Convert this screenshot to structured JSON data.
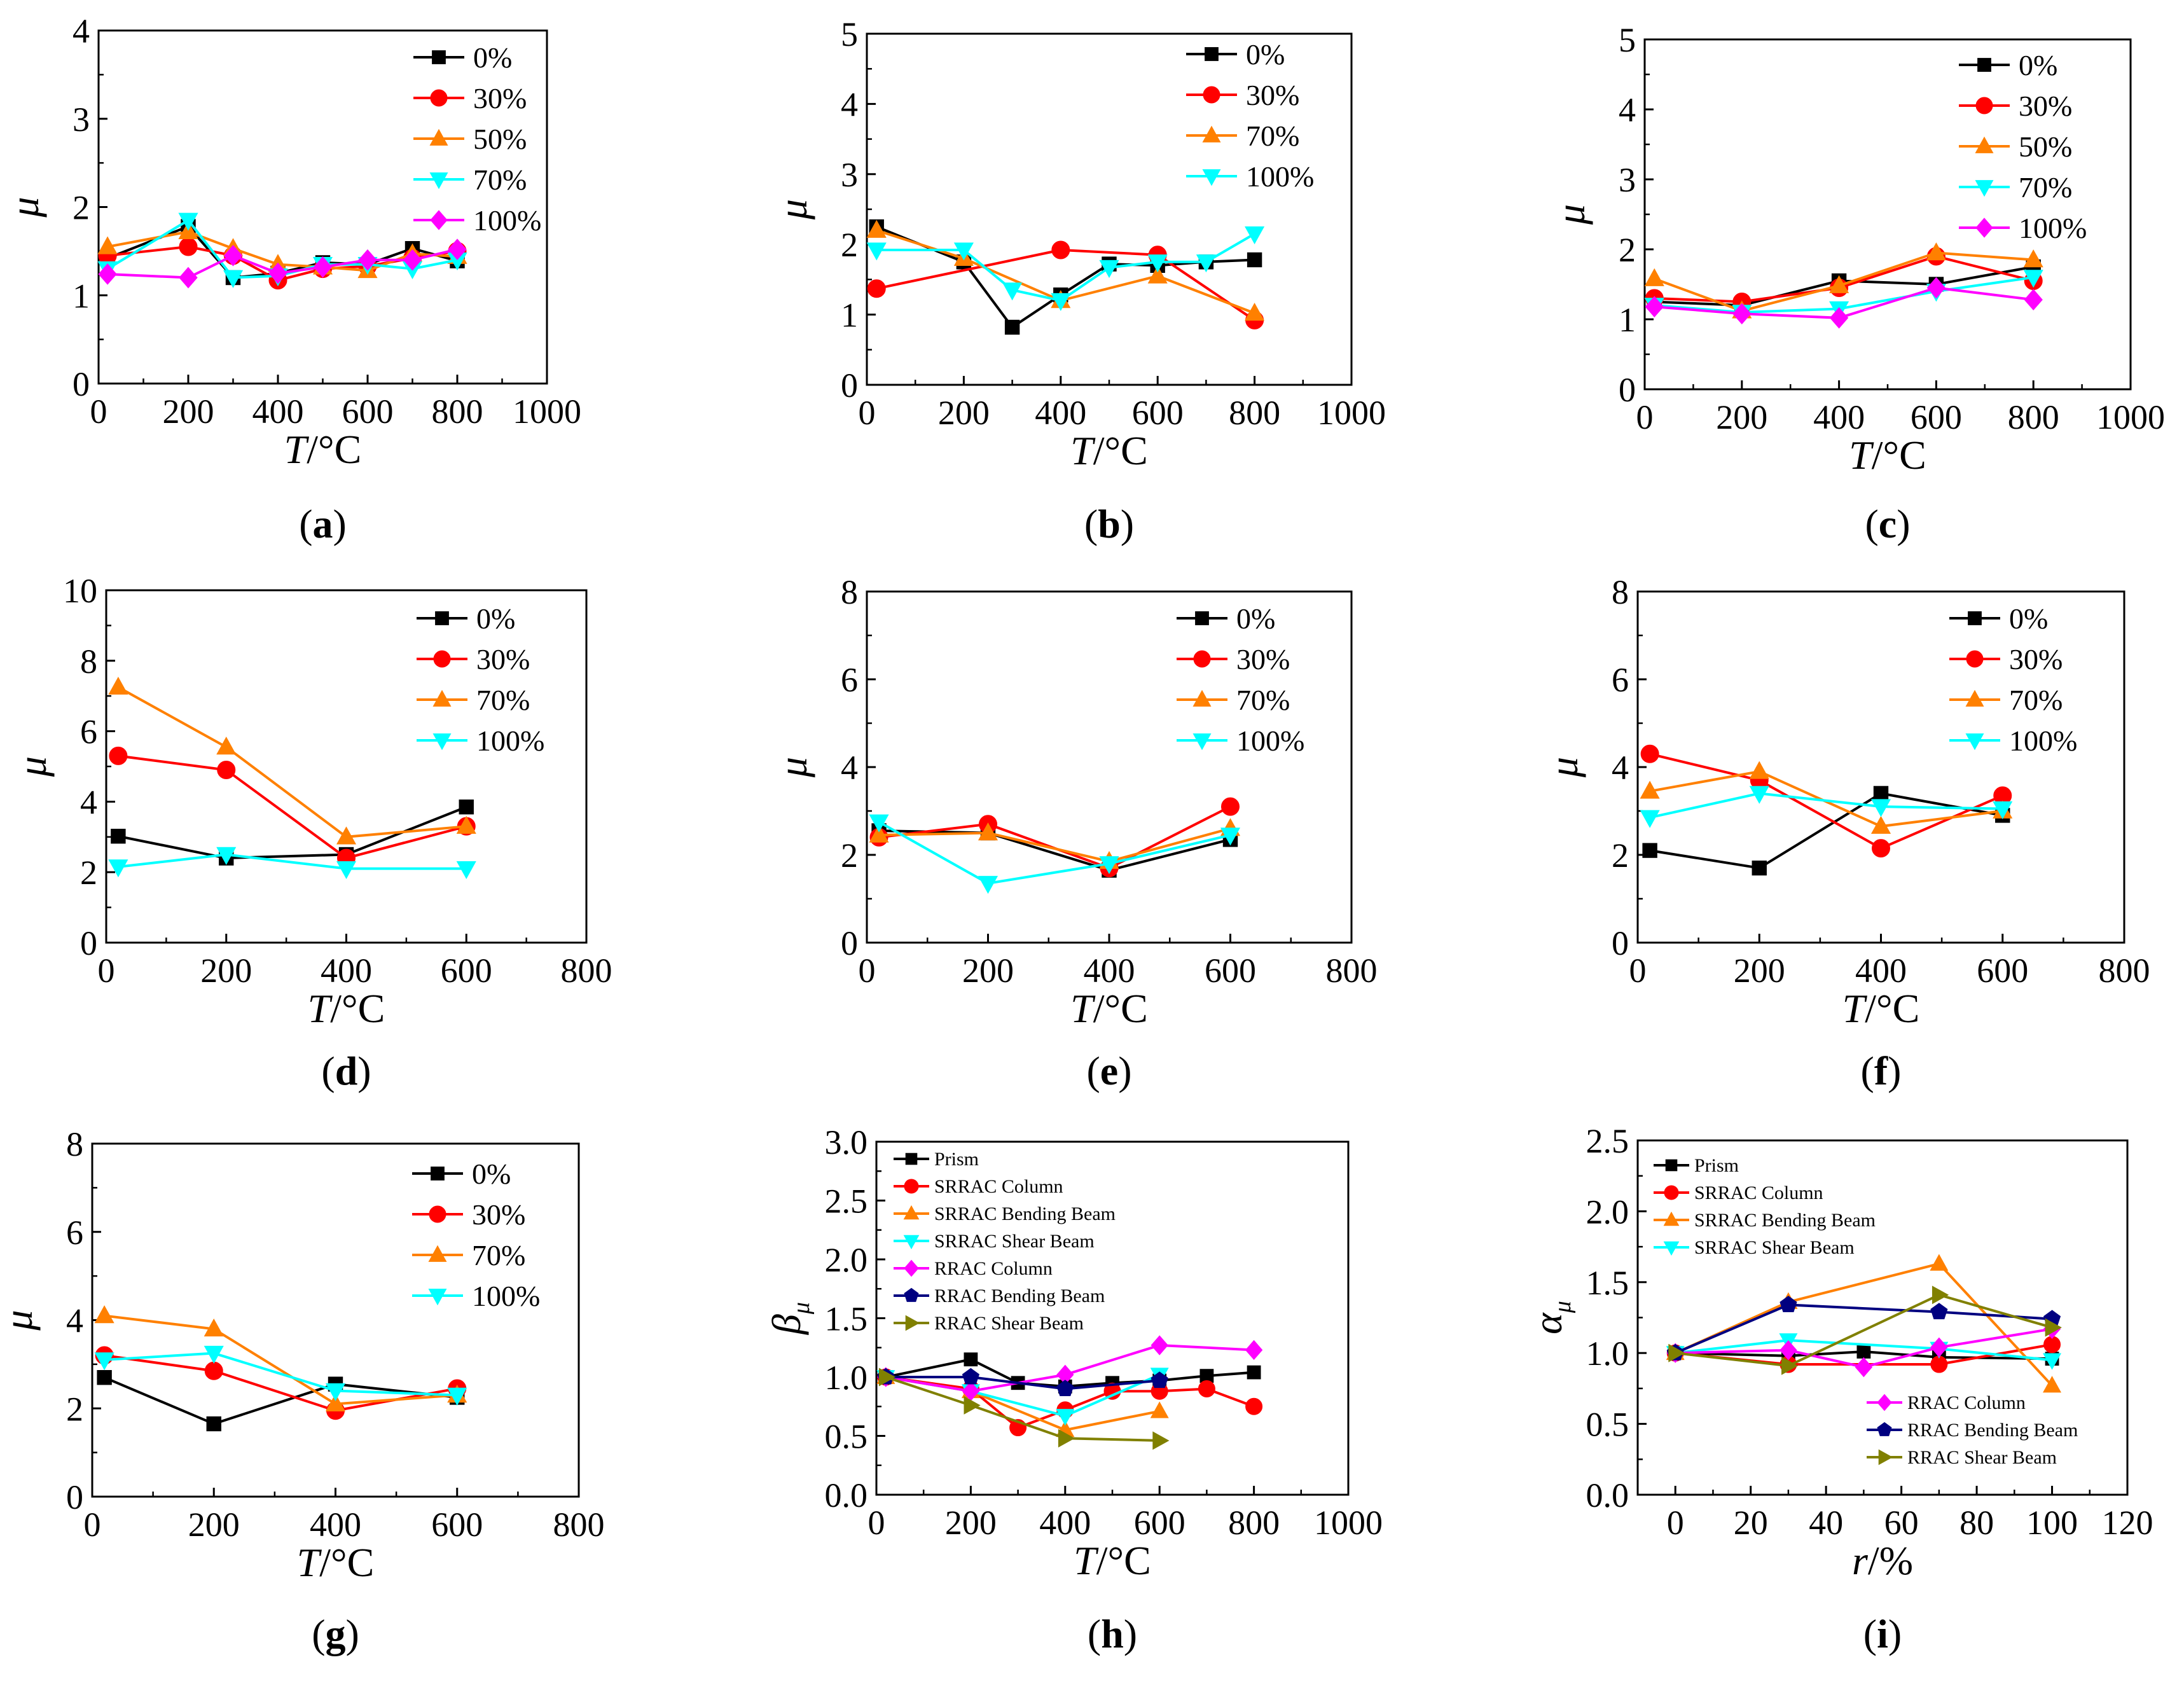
{
  "colors": {
    "0%": "#000000",
    "30%": "#ff0000",
    "50%": "#ff8000",
    "70%": "#ff8000",
    "100%": "#00ffff",
    "100%_a": "#ff00ff",
    "Prism": "#000000",
    "SRRAC Column": "#ff0000",
    "SRRAC Bending Beam": "#ff8000",
    "SRRAC Shear Beam": "#00ffff",
    "RRAC Column": "#ff00ff",
    "RRAC Bending Beam": "#000080",
    "RRAC Shear Beam": "#808000"
  },
  "chart_data": [
    {
      "id": "a",
      "type": "line",
      "panel_label": "a",
      "xlabel_italic": "T",
      "xlabel_rest": "/°C",
      "ylabel": "μ",
      "xlim": [
        0,
        1000
      ],
      "ylim": [
        0,
        4
      ],
      "xticks": [
        0,
        200,
        400,
        600,
        800,
        1000
      ],
      "yticks": [
        0,
        1,
        2,
        3,
        4
      ],
      "series": [
        {
          "name": "0%",
          "marker": "square",
          "color": "#000000",
          "x": [
            20,
            200,
            300,
            400,
            500,
            600,
            700,
            800
          ],
          "y": [
            1.42,
            1.78,
            1.2,
            1.25,
            1.37,
            1.35,
            1.53,
            1.39
          ]
        },
        {
          "name": "30%",
          "marker": "circle",
          "color": "#ff0000",
          "x": [
            20,
            200,
            300,
            400,
            500,
            600,
            700,
            800
          ],
          "y": [
            1.45,
            1.55,
            1.45,
            1.17,
            1.3,
            1.33,
            1.42,
            1.5
          ]
        },
        {
          "name": "50%",
          "marker": "triangle-up",
          "color": "#ff8000",
          "x": [
            20,
            200,
            300,
            400,
            500,
            600,
            700,
            800
          ],
          "y": [
            1.55,
            1.72,
            1.53,
            1.35,
            1.32,
            1.28,
            1.47,
            1.44
          ]
        },
        {
          "name": "70%",
          "marker": "triangle-down",
          "color": "#00ffff",
          "x": [
            20,
            200,
            300,
            400,
            500,
            600,
            700,
            800
          ],
          "y": [
            1.3,
            1.85,
            1.2,
            1.22,
            1.35,
            1.35,
            1.3,
            1.4
          ]
        },
        {
          "name": "100%",
          "marker": "diamond",
          "color": "#ff00ff",
          "x": [
            20,
            200,
            300,
            400,
            500,
            600,
            700,
            800
          ],
          "y": [
            1.24,
            1.2,
            1.45,
            1.25,
            1.32,
            1.4,
            1.4,
            1.52
          ]
        }
      ]
    },
    {
      "id": "b",
      "type": "line",
      "panel_label": "b",
      "xlabel_italic": "T",
      "xlabel_rest": "/°C",
      "ylabel": "μ",
      "xlim": [
        0,
        1000
      ],
      "ylim": [
        0,
        5
      ],
      "xticks": [
        0,
        200,
        400,
        600,
        800,
        1000
      ],
      "yticks": [
        0,
        1,
        2,
        3,
        4,
        5
      ],
      "series": [
        {
          "name": "0%",
          "marker": "square",
          "color": "#000000",
          "x": [
            20,
            200,
            300,
            400,
            500,
            600,
            700,
            800
          ],
          "y": [
            2.25,
            1.75,
            0.82,
            1.28,
            1.72,
            1.7,
            1.75,
            1.78
          ]
        },
        {
          "name": "30%",
          "marker": "circle",
          "color": "#ff0000",
          "x": [
            20,
            400,
            600,
            800
          ],
          "y": [
            1.37,
            1.92,
            1.85,
            0.92
          ]
        },
        {
          "name": "70%",
          "marker": "triangle-up",
          "color": "#ff8000",
          "x": [
            20,
            200,
            400,
            600,
            800
          ],
          "y": [
            2.2,
            1.8,
            1.2,
            1.55,
            1.02
          ]
        },
        {
          "name": "100%",
          "marker": "triangle-down",
          "color": "#00ffff",
          "x": [
            20,
            200,
            300,
            400,
            500,
            600,
            700,
            800
          ],
          "y": [
            1.92,
            1.92,
            1.35,
            1.2,
            1.67,
            1.75,
            1.75,
            2.15
          ]
        }
      ]
    },
    {
      "id": "c",
      "type": "line",
      "panel_label": "c",
      "xlabel_italic": "T",
      "xlabel_rest": "/°C",
      "ylabel": "μ",
      "xlim": [
        0,
        1000
      ],
      "ylim": [
        0,
        5
      ],
      "xticks": [
        0,
        200,
        400,
        600,
        800,
        1000
      ],
      "yticks": [
        0,
        1,
        2,
        3,
        4,
        5
      ],
      "series": [
        {
          "name": "0%",
          "marker": "square",
          "color": "#000000",
          "x": [
            20,
            200,
            400,
            600,
            800
          ],
          "y": [
            1.25,
            1.2,
            1.55,
            1.5,
            1.75
          ]
        },
        {
          "name": "30%",
          "marker": "circle",
          "color": "#ff0000",
          "x": [
            20,
            200,
            400,
            600,
            800
          ],
          "y": [
            1.3,
            1.25,
            1.45,
            1.9,
            1.55
          ]
        },
        {
          "name": "50%",
          "marker": "triangle-up",
          "color": "#ff8000",
          "x": [
            20,
            200,
            400,
            600,
            800
          ],
          "y": [
            1.58,
            1.12,
            1.48,
            1.95,
            1.85
          ]
        },
        {
          "name": "70%",
          "marker": "triangle-down",
          "color": "#00ffff",
          "x": [
            20,
            200,
            400,
            600,
            800
          ],
          "y": [
            1.2,
            1.1,
            1.15,
            1.4,
            1.6
          ]
        },
        {
          "name": "100%",
          "marker": "diamond",
          "color": "#ff00ff",
          "x": [
            20,
            200,
            400,
            600,
            800
          ],
          "y": [
            1.18,
            1.08,
            1.02,
            1.45,
            1.28
          ]
        }
      ]
    },
    {
      "id": "d",
      "type": "line",
      "panel_label": "d",
      "xlabel_italic": "T",
      "xlabel_rest": "/°C",
      "ylabel": "μ",
      "xlim": [
        0,
        800
      ],
      "ylim": [
        0,
        10
      ],
      "xticks": [
        0,
        200,
        400,
        600,
        800
      ],
      "yticks": [
        0,
        2,
        4,
        6,
        8,
        10
      ],
      "series": [
        {
          "name": "0%",
          "marker": "square",
          "color": "#000000",
          "x": [
            20,
            200,
            400,
            600
          ],
          "y": [
            3.02,
            2.4,
            2.5,
            3.85
          ]
        },
        {
          "name": "30%",
          "marker": "circle",
          "color": "#ff0000",
          "x": [
            20,
            200,
            400,
            600
          ],
          "y": [
            5.3,
            4.9,
            2.4,
            3.3
          ]
        },
        {
          "name": "70%",
          "marker": "triangle-up",
          "color": "#ff8000",
          "x": [
            20,
            200,
            400,
            600
          ],
          "y": [
            7.25,
            5.55,
            3.0,
            3.3
          ]
        },
        {
          "name": "100%",
          "marker": "triangle-down",
          "color": "#00ffff",
          "x": [
            20,
            200,
            400,
            600
          ],
          "y": [
            2.15,
            2.5,
            2.1,
            2.1
          ]
        }
      ]
    },
    {
      "id": "e",
      "type": "line",
      "panel_label": "e",
      "xlabel_italic": "T",
      "xlabel_rest": "/°C",
      "ylabel": "μ",
      "xlim": [
        0,
        800
      ],
      "ylim": [
        0,
        8
      ],
      "xticks": [
        0,
        200,
        400,
        600,
        800
      ],
      "yticks": [
        0,
        2,
        4,
        6,
        8
      ],
      "series": [
        {
          "name": "0%",
          "marker": "square",
          "color": "#000000",
          "x": [
            20,
            200,
            400,
            600
          ],
          "y": [
            2.55,
            2.5,
            1.65,
            2.35
          ]
        },
        {
          "name": "30%",
          "marker": "circle",
          "color": "#ff0000",
          "x": [
            20,
            200,
            400,
            600
          ],
          "y": [
            2.4,
            2.7,
            1.7,
            3.1
          ]
        },
        {
          "name": "70%",
          "marker": "triangle-up",
          "color": "#ff8000",
          "x": [
            20,
            200,
            400,
            600
          ],
          "y": [
            2.45,
            2.5,
            1.85,
            2.6
          ]
        },
        {
          "name": "100%",
          "marker": "triangle-down",
          "color": "#00ffff",
          "x": [
            20,
            200,
            400,
            600
          ],
          "y": [
            2.75,
            1.35,
            1.8,
            2.45
          ]
        }
      ]
    },
    {
      "id": "f",
      "type": "line",
      "panel_label": "f",
      "xlabel_italic": "T",
      "xlabel_rest": "/°C",
      "ylabel": "μ",
      "xlim": [
        0,
        800
      ],
      "ylim": [
        0,
        8
      ],
      "xticks": [
        0,
        200,
        400,
        600,
        800
      ],
      "yticks": [
        0,
        2,
        4,
        6,
        8
      ],
      "series": [
        {
          "name": "0%",
          "marker": "square",
          "color": "#000000",
          "x": [
            20,
            200,
            400,
            600
          ],
          "y": [
            2.1,
            1.7,
            3.4,
            2.9
          ]
        },
        {
          "name": "30%",
          "marker": "circle",
          "color": "#ff0000",
          "x": [
            20,
            200,
            400,
            600
          ],
          "y": [
            4.3,
            3.7,
            2.15,
            3.35
          ]
        },
        {
          "name": "70%",
          "marker": "triangle-up",
          "color": "#ff8000",
          "x": [
            20,
            200,
            400,
            600
          ],
          "y": [
            3.45,
            3.9,
            2.65,
            3.0
          ]
        },
        {
          "name": "100%",
          "marker": "triangle-down",
          "color": "#00ffff",
          "x": [
            20,
            200,
            400,
            600
          ],
          "y": [
            2.85,
            3.4,
            3.1,
            3.05
          ]
        }
      ]
    },
    {
      "id": "g",
      "type": "line",
      "panel_label": "g",
      "xlabel_italic": "T",
      "xlabel_rest": "/°C",
      "ylabel": "μ",
      "xlim": [
        0,
        800
      ],
      "ylim": [
        0,
        8
      ],
      "xticks": [
        0,
        200,
        400,
        600,
        800
      ],
      "yticks": [
        0,
        2,
        4,
        6,
        8
      ],
      "series": [
        {
          "name": "0%",
          "marker": "square",
          "color": "#000000",
          "x": [
            20,
            200,
            400,
            600
          ],
          "y": [
            2.7,
            1.65,
            2.55,
            2.25
          ]
        },
        {
          "name": "30%",
          "marker": "circle",
          "color": "#ff0000",
          "x": [
            20,
            200,
            400,
            600
          ],
          "y": [
            3.2,
            2.85,
            1.95,
            2.45
          ]
        },
        {
          "name": "70%",
          "marker": "triangle-up",
          "color": "#ff8000",
          "x": [
            20,
            200,
            400,
            600
          ],
          "y": [
            4.1,
            3.8,
            2.1,
            2.3
          ]
        },
        {
          "name": "100%",
          "marker": "triangle-down",
          "color": "#00ffff",
          "x": [
            20,
            200,
            400,
            600
          ],
          "y": [
            3.1,
            3.25,
            2.4,
            2.3
          ]
        }
      ]
    },
    {
      "id": "h",
      "type": "line",
      "panel_label": "h",
      "xlabel_italic": "T",
      "xlabel_rest": "/°C",
      "ylabel": "β",
      "ylabel_sub": "μ",
      "xlim": [
        0,
        1000
      ],
      "ylim": [
        0,
        3
      ],
      "xticks": [
        0,
        200,
        400,
        600,
        800,
        1000
      ],
      "yticks": [
        "0.0",
        "0.5",
        "1.0",
        "1.5",
        "2.0",
        "2.5",
        "3.0"
      ],
      "legend_small": true,
      "series": [
        {
          "name": "Prism",
          "marker": "square",
          "color": "#000000",
          "x": [
            20,
            200,
            300,
            400,
            500,
            600,
            700,
            800
          ],
          "y": [
            1.0,
            1.15,
            0.95,
            0.92,
            0.95,
            0.97,
            1.01,
            1.04
          ]
        },
        {
          "name": "SRRAC Column",
          "marker": "circle",
          "color": "#ff0000",
          "x": [
            20,
            200,
            300,
            400,
            500,
            600,
            700,
            800
          ],
          "y": [
            1.0,
            0.9,
            0.57,
            0.72,
            0.88,
            0.88,
            0.9,
            0.75
          ]
        },
        {
          "name": "SRRAC Bending Beam",
          "marker": "triangle-up",
          "color": "#ff8000",
          "x": [
            20,
            200,
            400,
            600
          ],
          "y": [
            1.0,
            0.88,
            0.55,
            0.71
          ]
        },
        {
          "name": "SRRAC Shear Beam",
          "marker": "triangle-down",
          "color": "#00ffff",
          "x": [
            20,
            200,
            400,
            600
          ],
          "y": [
            1.0,
            0.88,
            0.67,
            1.02
          ]
        },
        {
          "name": "RRAC Column",
          "marker": "diamond",
          "color": "#ff00ff",
          "x": [
            20,
            200,
            400,
            600,
            800
          ],
          "y": [
            1.0,
            0.88,
            1.02,
            1.27,
            1.23
          ]
        },
        {
          "name": "RRAC Bending Beam",
          "marker": "pentagon",
          "color": "#000080",
          "x": [
            20,
            200,
            400,
            600
          ],
          "y": [
            1.0,
            1.0,
            0.9,
            0.97
          ]
        },
        {
          "name": "RRAC Shear Beam",
          "marker": "triangle-right",
          "color": "#808000",
          "x": [
            20,
            200,
            400,
            600
          ],
          "y": [
            1.0,
            0.76,
            0.48,
            0.46
          ]
        }
      ]
    },
    {
      "id": "i",
      "type": "line",
      "panel_label": "i",
      "xlabel_italic": "r",
      "xlabel_rest": "/%",
      "ylabel": "α",
      "ylabel_sub": "μ",
      "xlim": [
        -10,
        120
      ],
      "ylim": [
        0,
        2.5
      ],
      "xticks": [
        0,
        20,
        40,
        60,
        80,
        100,
        120
      ],
      "yticks": [
        "0.0",
        "0.5",
        "1.0",
        "1.5",
        "2.0",
        "2.5"
      ],
      "legend_small": true,
      "legend_split": true,
      "series": [
        {
          "name": "Prism",
          "marker": "square",
          "color": "#000000",
          "x": [
            0,
            30,
            50,
            70,
            100
          ],
          "y": [
            1.0,
            0.98,
            1.01,
            0.97,
            0.96
          ]
        },
        {
          "name": "SRRAC Column",
          "marker": "circle",
          "color": "#ff0000",
          "x": [
            0,
            30,
            70,
            100
          ],
          "y": [
            1.0,
            0.92,
            0.92,
            1.06
          ]
        },
        {
          "name": "SRRAC Bending Beam",
          "marker": "triangle-up",
          "color": "#ff8000",
          "x": [
            0,
            30,
            70,
            100
          ],
          "y": [
            1.0,
            1.36,
            1.63,
            0.77
          ]
        },
        {
          "name": "SRRAC Shear Beam",
          "marker": "triangle-down",
          "color": "#00ffff",
          "x": [
            0,
            30,
            70,
            100
          ],
          "y": [
            1.0,
            1.09,
            1.03,
            0.95
          ]
        },
        {
          "name": "RRAC Column",
          "marker": "diamond",
          "color": "#ff00ff",
          "x": [
            0,
            30,
            50,
            70,
            100
          ],
          "y": [
            1.0,
            1.02,
            0.9,
            1.04,
            1.17
          ]
        },
        {
          "name": "RRAC Bending Beam",
          "marker": "pentagon",
          "color": "#000080",
          "x": [
            0,
            30,
            70,
            100
          ],
          "y": [
            1.0,
            1.34,
            1.29,
            1.24
          ]
        },
        {
          "name": "RRAC Shear Beam",
          "marker": "triangle-right",
          "color": "#808000",
          "x": [
            0,
            30,
            70,
            100
          ],
          "y": [
            1.0,
            0.91,
            1.41,
            1.18
          ]
        }
      ]
    }
  ]
}
